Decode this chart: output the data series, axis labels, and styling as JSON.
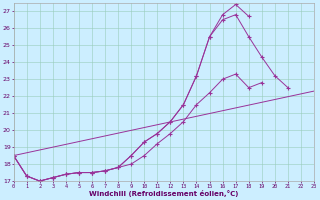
{
  "bg_color": "#cceeff",
  "line_color": "#993399",
  "grid_color": "#99ccbb",
  "xlabel": "Windchill (Refroidissement éolien,°C)",
  "xlim": [
    0,
    23
  ],
  "ylim": [
    17,
    27.5
  ],
  "yticks": [
    17,
    18,
    19,
    20,
    21,
    22,
    23,
    24,
    25,
    26,
    27
  ],
  "xticks": [
    0,
    1,
    2,
    3,
    4,
    5,
    6,
    7,
    8,
    9,
    10,
    11,
    12,
    13,
    14,
    15,
    16,
    17,
    18,
    19,
    20,
    21,
    22,
    23
  ],
  "lines": [
    {
      "x": [
        0,
        1,
        2,
        3,
        4,
        5,
        6,
        7,
        8,
        9,
        10,
        11,
        12,
        13,
        14,
        15,
        16,
        17,
        18
      ],
      "y": [
        18.5,
        17.3,
        17.0,
        17.2,
        17.4,
        17.5,
        17.5,
        17.6,
        17.8,
        18.5,
        19.3,
        19.8,
        20.5,
        21.5,
        23.2,
        25.5,
        26.8,
        27.4,
        26.7
      ],
      "marker": true
    },
    {
      "x": [
        0,
        1,
        2,
        3,
        4,
        5,
        6,
        7,
        8,
        9,
        10,
        11,
        12,
        13,
        14,
        15,
        16,
        17,
        18,
        19,
        20,
        21
      ],
      "y": [
        18.5,
        17.3,
        17.0,
        17.2,
        17.4,
        17.5,
        17.5,
        17.6,
        17.8,
        18.5,
        19.3,
        19.8,
        20.5,
        21.5,
        23.2,
        25.5,
        26.5,
        26.8,
        25.5,
        24.3,
        23.2,
        22.5
      ],
      "marker": true
    },
    {
      "x": [
        0,
        1,
        2,
        3,
        4,
        5,
        6,
        7,
        8,
        9,
        10,
        11,
        12,
        13,
        14,
        15,
        16,
        17,
        18,
        19
      ],
      "y": [
        18.5,
        17.3,
        17.0,
        17.2,
        17.4,
        17.5,
        17.5,
        17.6,
        17.8,
        18.0,
        18.5,
        19.2,
        19.8,
        20.5,
        21.5,
        22.2,
        23.0,
        23.3,
        22.5,
        22.8
      ],
      "marker": true
    },
    {
      "x": [
        0,
        23
      ],
      "y": [
        18.5,
        22.3
      ],
      "marker": false
    }
  ]
}
